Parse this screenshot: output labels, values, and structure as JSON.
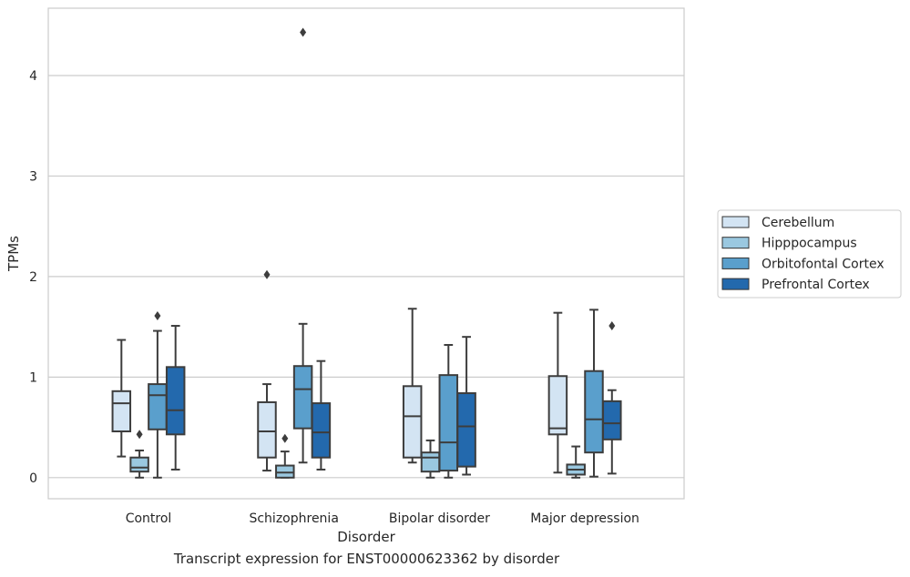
{
  "caption": "Transcript expression for ENST00000623362 by disorder",
  "chart_data": {
    "type": "box",
    "xlabel": "Disorder",
    "ylabel": "TPMs",
    "ylim": [
      -0.21,
      4.67
    ],
    "yticks": [
      0,
      1,
      2,
      3,
      4
    ],
    "grid": "horizontal",
    "legend_position": "right",
    "categories": [
      "Control",
      "Schizophrenia",
      "Bipolar disorder",
      "Major depression"
    ],
    "series": [
      {
        "name": "Cerebellum",
        "color": "#d3e4f3",
        "boxes": [
          {
            "whislo": 0.21,
            "q1": 0.46,
            "med": 0.74,
            "q3": 0.86,
            "whishi": 1.37,
            "fliers": []
          },
          {
            "whislo": 0.07,
            "q1": 0.2,
            "med": 0.46,
            "q3": 0.75,
            "whishi": 0.93,
            "fliers": [
              2.02
            ]
          },
          {
            "whislo": 0.15,
            "q1": 0.2,
            "med": 0.61,
            "q3": 0.91,
            "whishi": 1.68,
            "fliers": []
          },
          {
            "whislo": 0.05,
            "q1": 0.43,
            "med": 0.49,
            "q3": 1.01,
            "whishi": 1.64,
            "fliers": []
          }
        ]
      },
      {
        "name": "Hipppocampus",
        "color": "#9ac8e0",
        "boxes": [
          {
            "whislo": 0.0,
            "q1": 0.06,
            "med": 0.1,
            "q3": 0.2,
            "whishi": 0.27,
            "fliers": [
              0.43
            ]
          },
          {
            "whislo": 0.0,
            "q1": 0.0,
            "med": 0.05,
            "q3": 0.12,
            "whishi": 0.26,
            "fliers": [
              0.39
            ]
          },
          {
            "whislo": 0.0,
            "q1": 0.06,
            "med": 0.2,
            "q3": 0.25,
            "whishi": 0.37,
            "fliers": []
          },
          {
            "whislo": 0.0,
            "q1": 0.03,
            "med": 0.08,
            "q3": 0.13,
            "whishi": 0.31,
            "fliers": []
          }
        ]
      },
      {
        "name": "Orbitofontal Cortex",
        "color": "#5a9fcc",
        "boxes": [
          {
            "whislo": 0.0,
            "q1": 0.48,
            "med": 0.82,
            "q3": 0.93,
            "whishi": 1.46,
            "fliers": [
              1.61
            ]
          },
          {
            "whislo": 0.15,
            "q1": 0.49,
            "med": 0.88,
            "q3": 1.11,
            "whishi": 1.53,
            "fliers": [
              4.43
            ]
          },
          {
            "whislo": 0.0,
            "q1": 0.07,
            "med": 0.35,
            "q3": 1.02,
            "whishi": 1.32,
            "fliers": []
          },
          {
            "whislo": 0.01,
            "q1": 0.25,
            "med": 0.58,
            "q3": 1.06,
            "whishi": 1.67,
            "fliers": []
          }
        ]
      },
      {
        "name": "Prefrontal Cortex",
        "color": "#2369ad",
        "boxes": [
          {
            "whislo": 0.08,
            "q1": 0.43,
            "med": 0.67,
            "q3": 1.1,
            "whishi": 1.51,
            "fliers": []
          },
          {
            "whislo": 0.08,
            "q1": 0.2,
            "med": 0.45,
            "q3": 0.74,
            "whishi": 1.16,
            "fliers": []
          },
          {
            "whislo": 0.03,
            "q1": 0.11,
            "med": 0.51,
            "q3": 0.84,
            "whishi": 1.4,
            "fliers": []
          },
          {
            "whislo": 0.04,
            "q1": 0.38,
            "med": 0.54,
            "q3": 0.76,
            "whishi": 0.87,
            "fliers": [
              1.51
            ]
          }
        ]
      }
    ]
  }
}
